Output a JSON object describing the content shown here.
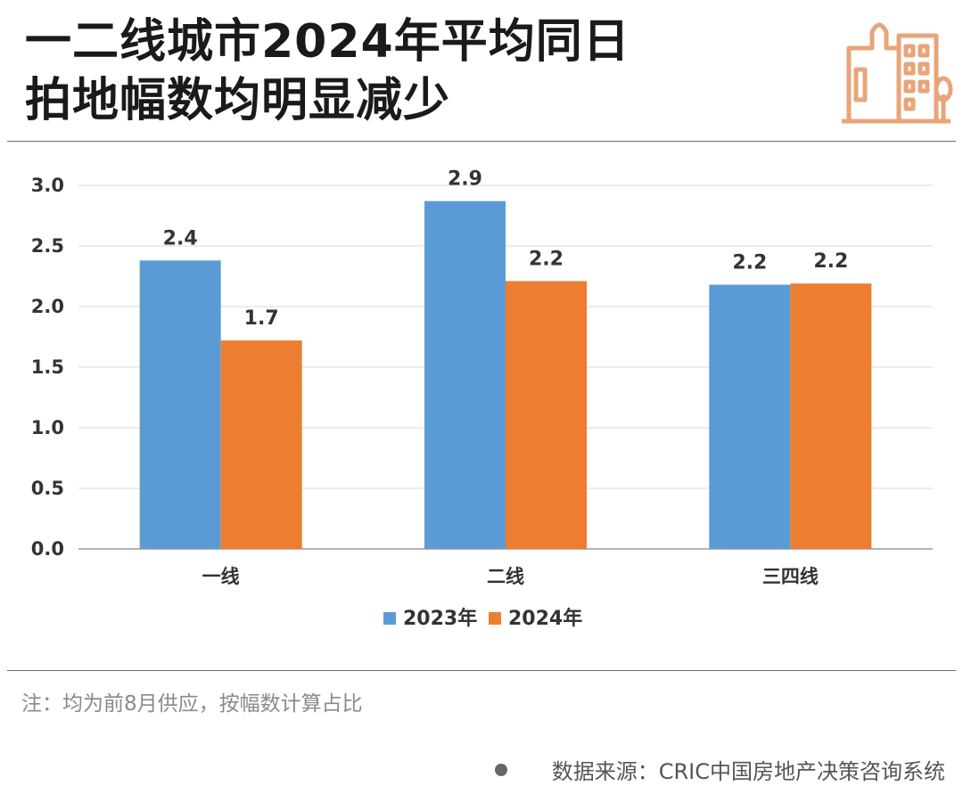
{
  "title": {
    "line1": "一二线城市2024年平均同日",
    "line2": "拍地幅数均明显减少"
  },
  "icons": {
    "logo": "buildings-icon",
    "source_bullet": "bullet-icon"
  },
  "colors": {
    "series_2023": "#5B9BD5",
    "series_2024": "#ED7D31",
    "logo": "#E8A57A"
  },
  "chart_data": {
    "type": "bar",
    "categories": [
      "一线",
      "二线",
      "三四线"
    ],
    "series": [
      {
        "name": "2023年",
        "values": [
          2.4,
          2.9,
          2.2
        ],
        "plotted": [
          2.38,
          2.87,
          2.18
        ]
      },
      {
        "name": "2024年",
        "values": [
          1.7,
          2.2,
          2.2
        ],
        "plotted": [
          1.72,
          2.21,
          2.19
        ]
      }
    ],
    "yticks": [
      "0.0",
      "0.5",
      "1.0",
      "1.5",
      "2.0",
      "2.5",
      "3.0"
    ],
    "ylim": [
      0,
      3
    ],
    "grid": true,
    "legend": "bottom-center",
    "xlabel": "",
    "ylabel": ""
  },
  "note": "注：均为前8月供应，按幅数计算占比",
  "source": "数据来源：CRIC中国房地产决策咨询系统"
}
